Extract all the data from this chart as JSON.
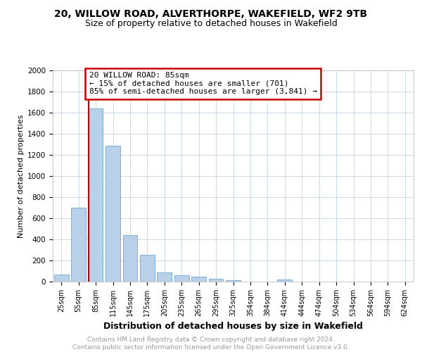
{
  "title1": "20, WILLOW ROAD, ALVERTHORPE, WAKEFIELD, WF2 9TB",
  "title2": "Size of property relative to detached houses in Wakefield",
  "xlabel": "Distribution of detached houses by size in Wakefield",
  "ylabel": "Number of detached properties",
  "categories": [
    "25sqm",
    "55sqm",
    "85sqm",
    "115sqm",
    "145sqm",
    "175sqm",
    "205sqm",
    "235sqm",
    "265sqm",
    "295sqm",
    "325sqm",
    "354sqm",
    "384sqm",
    "414sqm",
    "444sqm",
    "474sqm",
    "504sqm",
    "534sqm",
    "564sqm",
    "594sqm",
    "624sqm"
  ],
  "values": [
    65,
    700,
    1640,
    1285,
    440,
    255,
    90,
    60,
    45,
    30,
    15,
    0,
    0,
    20,
    0,
    0,
    0,
    0,
    0,
    0,
    0
  ],
  "bar_color": "#b8d0e8",
  "bar_edge_color": "#6aaad4",
  "vline_color": "#cc0000",
  "annotation_text": "20 WILLOW ROAD: 85sqm\n← 15% of detached houses are smaller (701)\n85% of semi-detached houses are larger (3,841) →",
  "annotation_box_edge_color": "#cc0000",
  "annotation_fontsize": 8,
  "ylim": [
    0,
    2000
  ],
  "yticks": [
    0,
    200,
    400,
    600,
    800,
    1000,
    1200,
    1400,
    1600,
    1800,
    2000
  ],
  "grid_color": "#c8d8ea",
  "background_color": "#ffffff",
  "footnote": "Contains HM Land Registry data © Crown copyright and database right 2024.\nContains public sector information licensed under the Open Government Licence v3.0.",
  "footnote_color": "#999999",
  "footnote_fontsize": 6.5,
  "title1_fontsize": 10,
  "title2_fontsize": 9,
  "xlabel_fontsize": 9,
  "ylabel_fontsize": 8
}
